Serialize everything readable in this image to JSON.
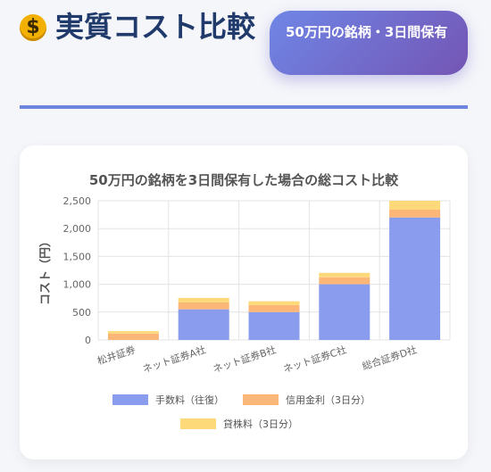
{
  "header": {
    "icon": "money-bag-icon",
    "title": "実質コスト比較",
    "badge": "50万円の銘柄・3日間保有"
  },
  "chart_data": {
    "type": "bar",
    "stacked": true,
    "title": "50万円の銘柄を3日間保有した場合の総コスト比較",
    "xlabel": "",
    "ylabel": "コスト（円）",
    "ylim": [
      0,
      2500
    ],
    "yticks": [
      0,
      500,
      1000,
      1500,
      2000,
      2500
    ],
    "ytick_labels": [
      "0",
      "500",
      "1,000",
      "1,500",
      "2,000",
      "2,500"
    ],
    "grid": true,
    "legend_position": "bottom",
    "categories": [
      "松井証券",
      "ネット証券A社",
      "ネット証券B社",
      "ネット証券C社",
      "総合証券D社"
    ],
    "series": [
      {
        "name": "手数料（往復）",
        "color": "#8a9ced",
        "values": [
          0,
          550,
          500,
          1000,
          2200
        ]
      },
      {
        "name": "信用金利（3日分）",
        "color": "#fbb678",
        "values": [
          115,
          125,
          125,
          125,
          140
        ]
      },
      {
        "name": "貸株料（3日分）",
        "color": "#fdd97a",
        "values": [
          45,
          80,
          70,
          80,
          160
        ]
      }
    ]
  }
}
